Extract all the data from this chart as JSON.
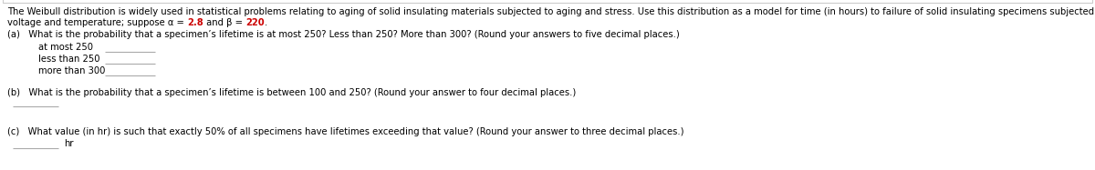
{
  "background_color": "#ffffff",
  "border_color": "#cccccc",
  "intro_line1": "The Weibull distribution is widely used in statistical problems relating to aging of solid insulating materials subjected to aging and stress. Use this distribution as a model for time (in hours) to failure of solid insulating specimens subjected to AC voltage. The values of the parameters depend on the",
  "intro_line2_pre": "voltage and temperature; suppose α = ",
  "intro_alpha": "2.8",
  "intro_mid": " and β = ",
  "intro_beta": "220",
  "intro_end": ".",
  "part_a_question": "(a)   What is the probability that a specimen’s lifetime is at most 250? Less than 250? More than 300? (Round your answers to five decimal places.)",
  "part_a_labels": [
    "at most 250",
    "less than 250",
    "more than 300"
  ],
  "part_b_question": "(b)   What is the probability that a specimen’s lifetime is between 100 and 250? (Round your answer to four decimal places.)",
  "part_c_question": "(c)   What value (in hr) is such that exactly 50% of all specimens have lifetimes exceeding that value? (Round your answer to three decimal places.)",
  "part_c_suffix": "hr",
  "text_color": "#000000",
  "highlight_color": "#cc0000",
  "font_size": 7.2,
  "line_color": "#aaaaaa",
  "border_linewidth": 0.8
}
